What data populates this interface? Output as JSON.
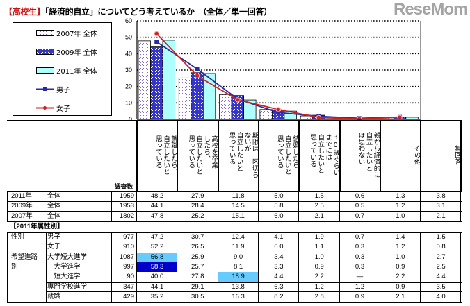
{
  "title": {
    "tag": "【高校生】",
    "text": "「経済的自立」についてどう考えているか　（全体／単一回答）"
  },
  "legend": [
    {
      "label": "2007年 全体",
      "kind": "bar",
      "pattern": "dots"
    },
    {
      "label": "2009年 全体",
      "kind": "bar",
      "pattern": "cross"
    },
    {
      "label": "2011年 全体",
      "kind": "bar",
      "pattern": "solid"
    },
    {
      "label": "男子",
      "kind": "line",
      "marker": "square"
    },
    {
      "label": "女子",
      "kind": "line",
      "marker": "circle"
    }
  ],
  "colors": {
    "y2007_dots": "#8a6ad0",
    "y2009": "#3535c8",
    "y2011": "#b0ffff",
    "male": "#2a2aa8",
    "female": "#cc2222",
    "highlight_light": "#66ccff",
    "highlight_dark": "#0000cc"
  },
  "chart_data": {
    "type": "bar",
    "categories": [
      "就職したら、自立したいと思っている",
      "高校を卒業したら、自立したいと思っている",
      "期限は区切らないが自立したいと思っている",
      "結婚したら、自立したいと思っている",
      "30歳ぐらいまでには自立したいと思っている",
      "親から経済的に自立したいとは思わない",
      "その他"
    ],
    "series": [
      {
        "name": "2007年 全体",
        "type": "bar",
        "values": [
          47.8,
          25.2,
          15.1,
          6.0,
          2.1,
          0.7,
          1.0
        ]
      },
      {
        "name": "2009年 全体",
        "type": "bar",
        "values": [
          44.1,
          28.4,
          14.5,
          5.8,
          2.5,
          0.5,
          1.2
        ]
      },
      {
        "name": "2011年 全体",
        "type": "bar",
        "values": [
          48.2,
          27.9,
          11.8,
          5.0,
          1.5,
          0.6,
          1.3
        ]
      },
      {
        "name": "男子",
        "type": "line",
        "values": [
          47.2,
          30.7,
          12.4,
          4.1,
          1.9,
          0.7,
          1.4
        ]
      },
      {
        "name": "女子",
        "type": "line",
        "values": [
          52.2,
          26.5,
          11.9,
          6.0,
          1.1,
          0.3,
          1.2
        ]
      }
    ],
    "yticks": [
      "0",
      "10",
      "20",
      "30",
      "40",
      "50",
      "60"
    ],
    "ylim": [
      0,
      60
    ],
    "grid": "horizontal dotted",
    "legend_position": "left"
  },
  "table": {
    "n_header": "調査数",
    "column_headers": [
      "就職したら、\n自立したいと\n思っている",
      "高校を卒業\nしたら、\n自立したいと\n思っている",
      "期限は　区切ら\nないが\n自立したいと\n思っている",
      "結婚したら、\n自立したいと\n思っている",
      "30歳ぐらい\nまでには\n自立したいと\n思っている",
      "親から経済的に\n自立したいと\nは思わない",
      "その他",
      "無回答"
    ],
    "overall": [
      {
        "year": "2011年",
        "group": "全体",
        "n": "1959",
        "values": [
          "48.2",
          "27.9",
          "11.8",
          "5.0",
          "1.5",
          "0.6",
          "1.3",
          "3.8"
        ]
      },
      {
        "year": "2009年",
        "group": "全体",
        "n": "1953",
        "values": [
          "44.1",
          "28.4",
          "14.5",
          "5.8",
          "2.5",
          "0.5",
          "1.2",
          "3.1"
        ]
      },
      {
        "year": "2007年",
        "group": "全体",
        "n": "1802",
        "values": [
          "47.8",
          "25.2",
          "15.1",
          "6.0",
          "2.1",
          "0.7",
          "1.0",
          "2.1"
        ]
      }
    ],
    "section_title": "【2011年属性別】",
    "attributes": [
      {
        "category": "性別",
        "rows": [
          {
            "label": "男子",
            "n": "977",
            "values": [
              "47.2",
              "30.7",
              "12.4",
              "4.1",
              "1.9",
              "0.7",
              "1.4",
              "1.5"
            ]
          },
          {
            "label": "女子",
            "n": "910",
            "values": [
              "52.2",
              "26.5",
              "11.9",
              "6.0",
              "1.1",
              "0.3",
              "1.2",
              "0.8"
            ]
          }
        ]
      },
      {
        "category": "希望進路\n別",
        "rows": [
          {
            "label": "大学短大進学",
            "n": "1087",
            "values": [
              "56.8",
              "25.9",
              "9.0",
              "3.4",
              "1.0",
              "0.3",
              "1.0",
              "2.7"
            ],
            "highlight": {
              "0": "light"
            }
          },
          {
            "label": "　大学進学",
            "n": "997",
            "values": [
              "58.3",
              "25.7",
              "8.1",
              "3.3",
              "0.9",
              "0.3",
              "0.9",
              "2.5"
            ],
            "highlight": {
              "0": "dark"
            }
          },
          {
            "label": "　短大進学",
            "n": "90",
            "values": [
              "40.0",
              "27.8",
              "18.9",
              "4.4",
              "2.2",
              "—",
              "2.2",
              "4.4"
            ],
            "highlight": {
              "2": "light"
            }
          },
          {
            "label": "専門学校進学",
            "n": "347",
            "values": [
              "44.1",
              "29.1",
              "13.8",
              "6.3",
              "1.2",
              "1.2",
              "0.9",
              "3.5"
            ]
          },
          {
            "label": "就職",
            "n": "429",
            "values": [
              "35.2",
              "30.5",
              "16.3",
              "8.2",
              "2.8",
              "0.9",
              "2.1",
              "4.0"
            ]
          }
        ]
      }
    ]
  },
  "watermark": "ReseMom"
}
